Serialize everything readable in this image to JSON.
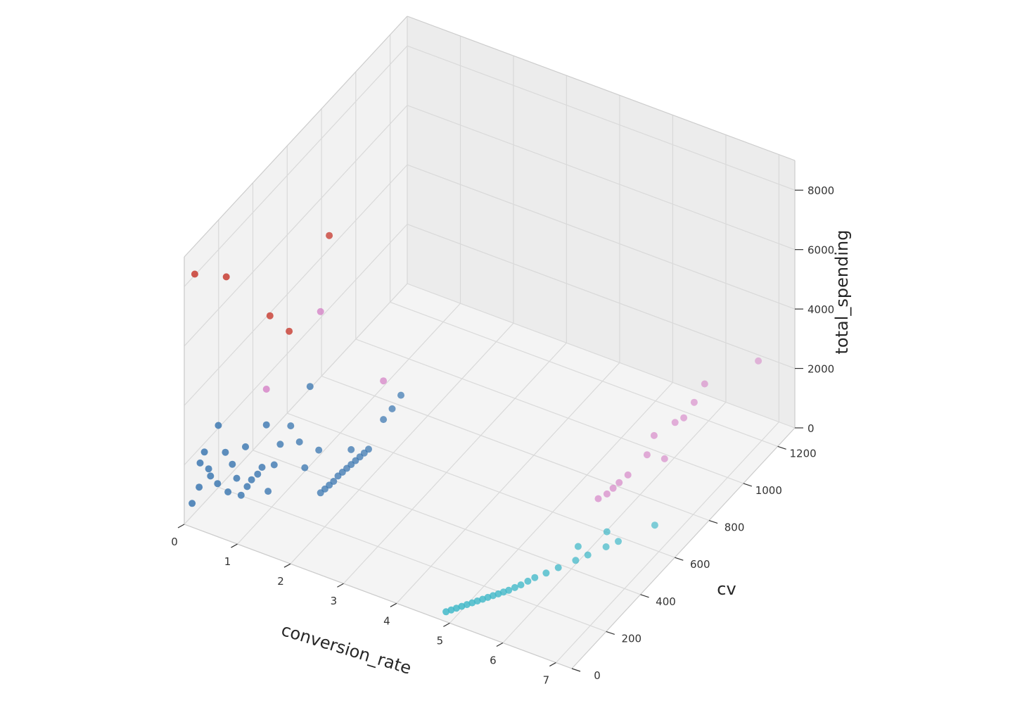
{
  "chart_data": {
    "type": "scatter",
    "projection": "3d",
    "grid": true,
    "title": "",
    "xlabel": "conversion_rate",
    "ylabel": "cv",
    "zlabel": "total_spending",
    "xlim": [
      0,
      7.3
    ],
    "ylim": [
      0,
      1300
    ],
    "zlim": [
      0,
      9000
    ],
    "xticks": [
      "0",
      "1",
      "2",
      "3",
      "4",
      "5",
      "6",
      "7"
    ],
    "yticks": [
      "0",
      "200",
      "400",
      "600",
      "800",
      "1000",
      "1200"
    ],
    "zticks": [
      "0",
      "2000",
      "4000",
      "6000",
      "8000"
    ],
    "colors": {
      "blue": "#3a76b0",
      "red": "#c7392e",
      "pink": "#d47fc5",
      "cyan": "#3fb8c8"
    },
    "series": [
      {
        "color": "#3a76b0",
        "points": [
          [
            0.05,
            30,
            550
          ],
          [
            0.15,
            40,
            1100
          ],
          [
            0.25,
            40,
            2350
          ],
          [
            0.3,
            60,
            1450
          ],
          [
            0.12,
            55,
            1800
          ],
          [
            0.2,
            80,
            1500
          ],
          [
            0.35,
            90,
            3000
          ],
          [
            0.45,
            100,
            2100
          ],
          [
            0.55,
            110,
            1700
          ],
          [
            0.6,
            120,
            1200
          ],
          [
            0.5,
            100,
            800
          ],
          [
            0.4,
            70,
            1200
          ],
          [
            0.7,
            150,
            800
          ],
          [
            0.75,
            160,
            1000
          ],
          [
            0.8,
            180,
            1100
          ],
          [
            0.85,
            190,
            1300
          ],
          [
            0.65,
            130,
            600
          ],
          [
            0.9,
            210,
            400
          ],
          [
            0.95,
            230,
            1200
          ],
          [
            1.0,
            250,
            1800
          ],
          [
            0.7,
            140,
            2200
          ],
          [
            0.9,
            200,
            2700
          ],
          [
            1.1,
            280,
            2300
          ],
          [
            1.2,
            300,
            1700
          ],
          [
            1.3,
            300,
            900
          ],
          [
            1.4,
            300,
            3700
          ],
          [
            1.5,
            320,
            1500
          ],
          [
            1.5,
            330,
            0
          ],
          [
            1.55,
            340,
            100
          ],
          [
            1.6,
            350,
            200
          ],
          [
            1.65,
            360,
            300
          ],
          [
            1.7,
            370,
            450
          ],
          [
            1.75,
            380,
            550
          ],
          [
            1.8,
            390,
            650
          ],
          [
            1.85,
            400,
            750
          ],
          [
            1.9,
            410,
            850
          ],
          [
            1.95,
            420,
            950
          ],
          [
            2.0,
            430,
            1050
          ],
          [
            2.05,
            440,
            1150
          ],
          [
            1.85,
            400,
            1250
          ],
          [
            2.2,
            480,
            2000
          ],
          [
            2.3,
            500,
            2300
          ],
          [
            2.4,
            520,
            2700
          ]
        ]
      },
      {
        "color": "#c7392e",
        "points": [
          [
            0.1,
            30,
            8300
          ],
          [
            0.5,
            90,
            8100
          ],
          [
            1.0,
            190,
            6500
          ],
          [
            1.2,
            240,
            5800
          ],
          [
            1.6,
            350,
            8600
          ]
        ]
      },
      {
        "color": "#d47fc5",
        "points": [
          [
            0.9,
            200,
            3900
          ],
          [
            1.5,
            330,
            6100
          ],
          [
            2.2,
            480,
            3300
          ],
          [
            5.6,
            680,
            350
          ],
          [
            5.7,
            700,
            450
          ],
          [
            5.75,
            720,
            550
          ],
          [
            5.8,
            740,
            650
          ],
          [
            5.9,
            760,
            850
          ],
          [
            6.1,
            810,
            1350
          ],
          [
            6.2,
            820,
            2000
          ],
          [
            6.3,
            850,
            1100
          ],
          [
            6.4,
            880,
            2200
          ],
          [
            6.5,
            900,
            2300
          ],
          [
            6.6,
            930,
            2700
          ],
          [
            6.7,
            960,
            3200
          ],
          [
            7.0,
            1180,
            2800
          ]
        ]
      },
      {
        "color": "#3fb8c8",
        "points": [
          [
            4.8,
            40,
            0
          ],
          [
            4.85,
            55,
            0
          ],
          [
            4.9,
            70,
            0
          ],
          [
            4.95,
            85,
            0
          ],
          [
            5.0,
            100,
            0
          ],
          [
            5.05,
            115,
            0
          ],
          [
            5.1,
            130,
            0
          ],
          [
            5.15,
            145,
            0
          ],
          [
            5.2,
            160,
            0
          ],
          [
            5.25,
            175,
            0
          ],
          [
            5.3,
            190,
            0
          ],
          [
            5.35,
            205,
            0
          ],
          [
            5.4,
            220,
            0
          ],
          [
            5.45,
            240,
            0
          ],
          [
            5.5,
            260,
            0
          ],
          [
            5.55,
            285,
            0
          ],
          [
            5.6,
            310,
            0
          ],
          [
            5.7,
            345,
            0
          ],
          [
            5.8,
            385,
            0
          ],
          [
            5.95,
            440,
            0
          ],
          [
            6.05,
            480,
            0
          ],
          [
            6.2,
            540,
            0
          ],
          [
            6.3,
            580,
            0
          ],
          [
            5.9,
            470,
            250
          ],
          [
            6.15,
            560,
            350
          ],
          [
            6.6,
            700,
            0
          ]
        ]
      }
    ]
  }
}
